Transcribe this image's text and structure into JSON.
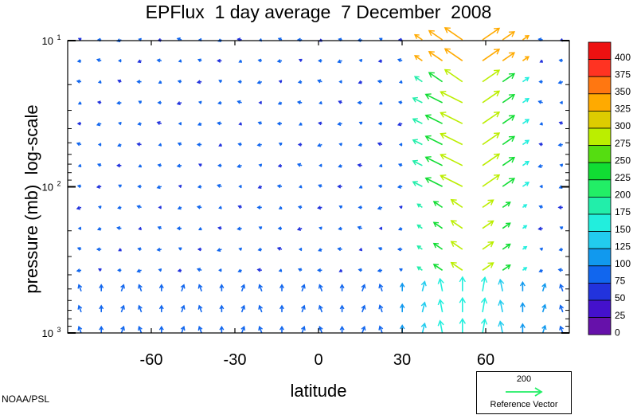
{
  "chart_data": {
    "type": "vector",
    "title": "EPFlux  1 day average  7 December  2008",
    "xlabel": "latitude",
    "ylabel": "pressure (mb)  log-scale",
    "xlim": [
      -90,
      90
    ],
    "ylim": [
      1000,
      10
    ],
    "yscale": "log",
    "x_ticks": [
      {
        "value": -60,
        "label": "-60"
      },
      {
        "value": -30,
        "label": "-30"
      },
      {
        "value": 0,
        "label": "0"
      },
      {
        "value": 30,
        "label": "30"
      },
      {
        "value": 60,
        "label": "60"
      }
    ],
    "y_ticks": [
      {
        "value": 10,
        "base": "10",
        "exp": "1"
      },
      {
        "value": 100,
        "base": "10",
        "exp": "2"
      },
      {
        "value": 1000,
        "base": "10",
        "exp": "3"
      }
    ],
    "colorbar": {
      "levels": [
        "400",
        "375",
        "350",
        "325",
        "300",
        "275",
        "250",
        "225",
        "200",
        "175",
        "150",
        "125",
        "100",
        "75",
        "50",
        "25",
        "0"
      ],
      "colors": [
        "#ee1111",
        "#ff3322",
        "#ff7711",
        "#ffaa00",
        "#ddcc00",
        "#bbee00",
        "#55dd11",
        "#11dd33",
        "#22ee66",
        "#22eeaa",
        "#22eedd",
        "#22ccee",
        "#1199ee",
        "#1166ee",
        "#2233dd",
        "#4411cc",
        "#6611aa"
      ]
    },
    "reference": {
      "value": "200",
      "label": "Reference Vector",
      "color": "#22ee66"
    },
    "credit": "NOAA/PSL"
  }
}
